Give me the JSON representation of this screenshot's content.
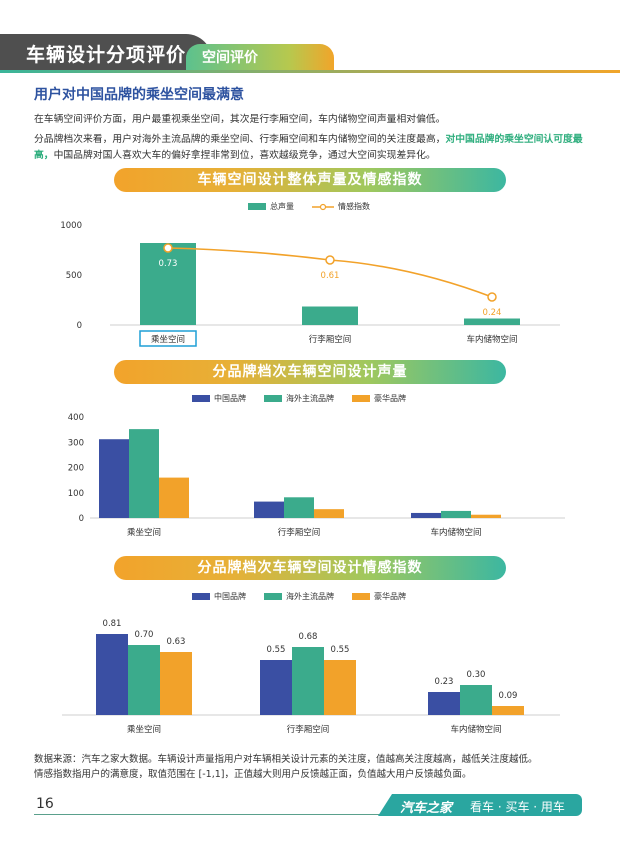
{
  "header": {
    "section_title": "车辆设计分项评价",
    "subsection_tab": "空间评价"
  },
  "heading": "用户对中国品牌的乘坐空间最满意",
  "paragraphs": {
    "p1": "在车辆空间评价方面，用户最重视乘坐空间，其次是行李厢空间，车内储物空间声量相对偏低。",
    "p2_a": "分品牌档次来看，用户对海外主流品牌的乘坐空间、行李厢空间和车内储物空间的关注度最高，",
    "p2_highlight": "对中国品牌的乘坐空间认可度最高，",
    "p2_b": "中国品牌对国人喜欢大车的偏好拿捏非常到位，喜欢越级竞争，通过大空间实现差异化。"
  },
  "colors": {
    "green": "#3bab8c",
    "orange": "#f2a22a",
    "blue": "#3a4fa3",
    "title_blue": "#2e53a0"
  },
  "chart_data": [
    {
      "type": "bar",
      "title": "车辆空间设计整体声量及情感指数",
      "categories": [
        "乘坐空间",
        "行李厢空间",
        "车内储物空间"
      ],
      "series": [
        {
          "name": "总声量",
          "type": "bar",
          "values": [
            820,
            185,
            65
          ]
        },
        {
          "name": "情感指数",
          "type": "line",
          "values": [
            0.73,
            0.61,
            0.24
          ]
        }
      ],
      "y_ticks": [
        "0",
        "500",
        "1000"
      ],
      "ylim": [
        0,
        1000
      ],
      "highlighted_category": "乘坐空间"
    },
    {
      "type": "bar",
      "title": "分品牌档次车辆空间设计声量",
      "categories": [
        "乘坐空间",
        "行李厢空间",
        "车内储物空间"
      ],
      "series": [
        {
          "name": "中国品牌",
          "values": [
            312,
            65,
            20
          ]
        },
        {
          "name": "海外主流品牌",
          "values": [
            352,
            82,
            28
          ]
        },
        {
          "name": "豪华品牌",
          "values": [
            160,
            35,
            13
          ]
        }
      ],
      "y_ticks": [
        "0",
        "100",
        "200",
        "300",
        "400"
      ],
      "ylim": [
        0,
        400
      ]
    },
    {
      "type": "bar",
      "title": "分品牌档次车辆空间设计情感指数",
      "categories": [
        "乘坐空间",
        "行李厢空间",
        "车内储物空间"
      ],
      "series": [
        {
          "name": "中国品牌",
          "values": [
            0.81,
            0.55,
            0.23
          ]
        },
        {
          "name": "海外主流品牌",
          "values": [
            0.7,
            0.68,
            0.3
          ]
        },
        {
          "name": "豪华品牌",
          "values": [
            0.63,
            0.55,
            0.09
          ]
        }
      ],
      "data_labels": [
        [
          "0.81",
          "0.55",
          "0.23"
        ],
        [
          "0.70",
          "0.68",
          "0.30"
        ],
        [
          "0.63",
          "0.55",
          "0.09"
        ]
      ],
      "ylim": [
        0,
        0.9
      ]
    }
  ],
  "notes": {
    "line1": "数据来源：汽车之家大数据。车辆设计声量指用户对车辆相关设计元素的关注度，值越高关注度越高，越低关注度越低。",
    "line2": "情感指数指用户的满意度，取值范围在 [-1,1]，正值越大则用户反馈越正面，负值越大用户反馈越负面。"
  },
  "footer": {
    "page_number": "16",
    "brand": "汽车之家",
    "slogan": "看车 · 买车 · 用车"
  }
}
